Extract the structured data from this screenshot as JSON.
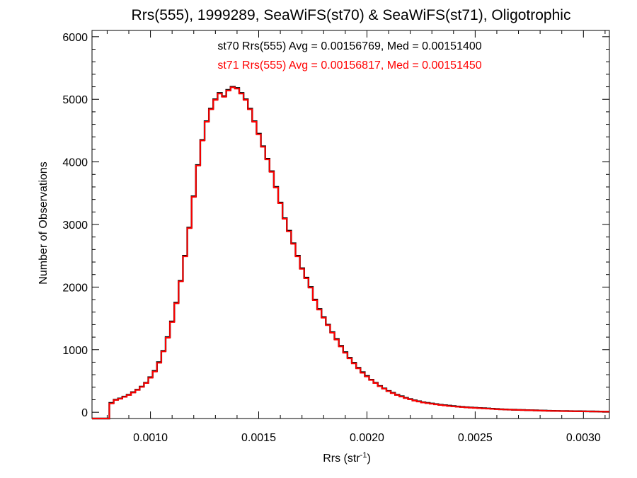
{
  "chart_data": {
    "type": "histogram-line",
    "title": "Rrs(555), 1999289, SeaWiFS(st70) & SeaWiFS(st71), Oligotrophic",
    "xlabel": "Rrs (str",
    "xlabel_sup": "-1",
    "xlabel_close": ")",
    "ylabel": "Number of Observations",
    "xlim": [
      0.00073,
      0.00312
    ],
    "ylim": [
      -100,
      6100
    ],
    "xticks": [
      0.001,
      0.0015,
      0.002,
      0.0025,
      0.003
    ],
    "xtick_labels": [
      "0.0010",
      "0.0015",
      "0.0020",
      "0.0025",
      "0.0030"
    ],
    "yticks": [
      0,
      1000,
      2000,
      3000,
      4000,
      5000,
      6000
    ],
    "ytick_labels": [
      "0",
      "1000",
      "2000",
      "3000",
      "4000",
      "5000",
      "6000"
    ],
    "annotations": [
      "st70 Rrs(555) Avg = 0.00156769, Med = 0.00151400",
      "st71 Rrs(555) Avg = 0.00156817, Med = 0.00151450"
    ],
    "series": [
      {
        "color": "#000000",
        "x": [
          0.00073,
          0.0008,
          0.00081,
          0.00083,
          0.00085,
          0.00087,
          0.00089,
          0.00091,
          0.00093,
          0.00095,
          0.00097,
          0.00099,
          0.00101,
          0.00103,
          0.00105,
          0.00107,
          0.00109,
          0.00111,
          0.00113,
          0.00115,
          0.00117,
          0.00119,
          0.00121,
          0.00123,
          0.00125,
          0.00127,
          0.00129,
          0.00131,
          0.00133,
          0.00135,
          0.00137,
          0.00139,
          0.00141,
          0.00143,
          0.00145,
          0.00147,
          0.00149,
          0.00151,
          0.00153,
          0.00155,
          0.00157,
          0.00159,
          0.00161,
          0.00163,
          0.00165,
          0.00167,
          0.00169,
          0.00171,
          0.00173,
          0.00175,
          0.00177,
          0.00179,
          0.00181,
          0.00183,
          0.00185,
          0.00187,
          0.00189,
          0.00191,
          0.00193,
          0.00195,
          0.00197,
          0.00199,
          0.00201,
          0.00203,
          0.00205,
          0.00207,
          0.00209,
          0.00211,
          0.00213,
          0.00215,
          0.00217,
          0.00219,
          0.00221,
          0.00223,
          0.00225,
          0.00227,
          0.00229,
          0.00231,
          0.00233,
          0.00235,
          0.00237,
          0.00239,
          0.00241,
          0.00243,
          0.00245,
          0.00247,
          0.00249,
          0.00251,
          0.00253,
          0.00255,
          0.00257,
          0.00259,
          0.00261,
          0.00263,
          0.00265,
          0.00267,
          0.00269,
          0.00271,
          0.00273,
          0.00275,
          0.00277,
          0.00279,
          0.00281,
          0.00283,
          0.00285,
          0.00287,
          0.00289,
          0.00291,
          0.00293,
          0.00295,
          0.00297,
          0.00299,
          0.00301,
          0.00303,
          0.00305,
          0.00307,
          0.00309,
          0.00312
        ],
        "y": [
          -100,
          -100,
          150,
          200,
          220,
          250,
          280,
          320,
          360,
          410,
          470,
          560,
          660,
          800,
          980,
          1200,
          1450,
          1750,
          2100,
          2500,
          2950,
          3450,
          3950,
          4350,
          4650,
          4850,
          5000,
          5100,
          5050,
          5150,
          5200,
          5180,
          5100,
          5000,
          4850,
          4650,
          4450,
          4250,
          4050,
          3850,
          3600,
          3350,
          3100,
          2900,
          2700,
          2500,
          2300,
          2150,
          2000,
          1800,
          1650,
          1520,
          1400,
          1280,
          1170,
          1060,
          960,
          870,
          790,
          710,
          640,
          580,
          520,
          470,
          420,
          380,
          340,
          310,
          280,
          255,
          230,
          210,
          190,
          175,
          160,
          150,
          140,
          130,
          120,
          112,
          105,
          98,
          92,
          86,
          80,
          76,
          72,
          68,
          64,
          60,
          56,
          52,
          48,
          45,
          42,
          40,
          38,
          36,
          34,
          32,
          30,
          28,
          26,
          24,
          22,
          21,
          20,
          19,
          18,
          17,
          16,
          15,
          14,
          13,
          12,
          11,
          10,
          10
        ]
      },
      {
        "color": "#ff0000",
        "x": [
          0.00073,
          0.0008,
          0.00081,
          0.00083,
          0.00085,
          0.00087,
          0.00089,
          0.00091,
          0.00093,
          0.00095,
          0.00097,
          0.00099,
          0.00101,
          0.00103,
          0.00105,
          0.00107,
          0.00109,
          0.00111,
          0.00113,
          0.00115,
          0.00117,
          0.00119,
          0.00121,
          0.00123,
          0.00125,
          0.00127,
          0.00129,
          0.00131,
          0.00133,
          0.00135,
          0.00137,
          0.00139,
          0.00141,
          0.00143,
          0.00145,
          0.00147,
          0.00149,
          0.00151,
          0.00153,
          0.00155,
          0.00157,
          0.00159,
          0.00161,
          0.00163,
          0.00165,
          0.00167,
          0.00169,
          0.00171,
          0.00173,
          0.00175,
          0.00177,
          0.00179,
          0.00181,
          0.00183,
          0.00185,
          0.00187,
          0.00189,
          0.00191,
          0.00193,
          0.00195,
          0.00197,
          0.00199,
          0.00201,
          0.00203,
          0.00205,
          0.00207,
          0.00209,
          0.00211,
          0.00213,
          0.00215,
          0.00217,
          0.00219,
          0.00221,
          0.00223,
          0.00225,
          0.00227,
          0.00229,
          0.00231,
          0.00233,
          0.00235,
          0.00237,
          0.00239,
          0.00241,
          0.00243,
          0.00245,
          0.00247,
          0.00249,
          0.00251,
          0.00253,
          0.00255,
          0.00257,
          0.00259,
          0.00261,
          0.00263,
          0.00265,
          0.00267,
          0.00269,
          0.00271,
          0.00273,
          0.00275,
          0.00277,
          0.00279,
          0.00281,
          0.00283,
          0.00285,
          0.00287,
          0.00289,
          0.00291,
          0.00293,
          0.00295,
          0.00297,
          0.00299,
          0.00301,
          0.00303,
          0.00305,
          0.00307,
          0.00309,
          0.00312
        ],
        "y": [
          -100,
          -100,
          140,
          195,
          215,
          245,
          275,
          315,
          355,
          405,
          465,
          550,
          650,
          790,
          970,
          1190,
          1440,
          1740,
          2090,
          2490,
          2940,
          3440,
          3940,
          4340,
          4640,
          4840,
          4990,
          5090,
          5040,
          5140,
          5190,
          5170,
          5090,
          4990,
          4840,
          4640,
          4440,
          4240,
          4040,
          3840,
          3590,
          3340,
          3090,
          2890,
          2690,
          2490,
          2290,
          2140,
          1990,
          1790,
          1640,
          1510,
          1390,
          1270,
          1160,
          1050,
          950,
          860,
          780,
          700,
          630,
          570,
          515,
          465,
          415,
          375,
          335,
          305,
          275,
          250,
          225,
          205,
          185,
          170,
          155,
          145,
          135,
          125,
          115,
          108,
          100,
          94,
          88,
          82,
          77,
          73,
          69,
          65,
          61,
          57,
          53,
          49,
          46,
          43,
          41,
          39,
          37,
          35,
          33,
          31,
          29,
          27,
          25,
          23,
          21,
          20,
          19,
          18,
          17,
          16,
          15,
          14,
          13,
          12,
          11,
          10,
          9,
          9
        ]
      }
    ],
    "grid": false,
    "legend": "none"
  }
}
